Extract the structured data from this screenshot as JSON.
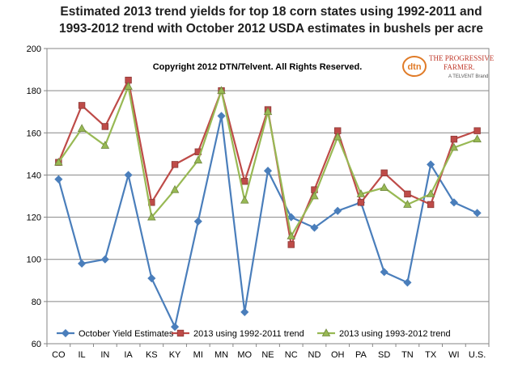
{
  "chart_data": {
    "type": "line",
    "title": "Estimated 2013 trend yields for top 18 corn states using 1992-2011 and 1993-2012 trend with October 2012 USDA estimates in bushels per acre",
    "title_lines": [
      "Estimated 2013 trend yields for top 18 corn states using 1992-2011 and",
      "1993-2012 trend with October 2012 USDA estimates in bushels per acre"
    ],
    "annotation": "Copyright 2012 DTN/Telvent. All Rights Reserved.",
    "logo": {
      "mark": "dtn",
      "line1": "THE PROGRESSIVE",
      "line2": "FARMER.",
      "line3": "A TELVENT Brand"
    },
    "xlabel": "",
    "ylabel": "",
    "ylim": [
      60,
      200
    ],
    "yticks": [
      60,
      80,
      100,
      120,
      140,
      160,
      180,
      200
    ],
    "grid": "horizontal",
    "legend_position": "bottom",
    "categories": [
      "CO",
      "IL",
      "IN",
      "IA",
      "KS",
      "KY",
      "MI",
      "MN",
      "MO",
      "NE",
      "NC",
      "ND",
      "OH",
      "PA",
      "SD",
      "TN",
      "TX",
      "WI",
      "U.S."
    ],
    "series": [
      {
        "name": "October Yield Estimates",
        "color": "#4a7ebb",
        "marker": "diamond",
        "values": [
          138,
          98,
          100,
          140,
          91,
          68,
          118,
          168,
          75,
          142,
          120,
          115,
          123,
          127,
          94,
          89,
          145,
          127,
          122
        ]
      },
      {
        "name": "2013 using 1992-2011 trend",
        "color": "#be4b48",
        "marker": "square",
        "values": [
          146,
          173,
          163,
          185,
          127,
          145,
          151,
          180,
          137,
          171,
          107,
          133,
          161,
          127,
          141,
          131,
          126,
          157,
          161
        ]
      },
      {
        "name": "2013 using 1993-2012 trend",
        "color": "#98b954",
        "marker": "triangle",
        "values": [
          146,
          162,
          154,
          182,
          120,
          133,
          147,
          180,
          128,
          170,
          111,
          130,
          158,
          131,
          134,
          126,
          131,
          153,
          157
        ]
      }
    ]
  }
}
